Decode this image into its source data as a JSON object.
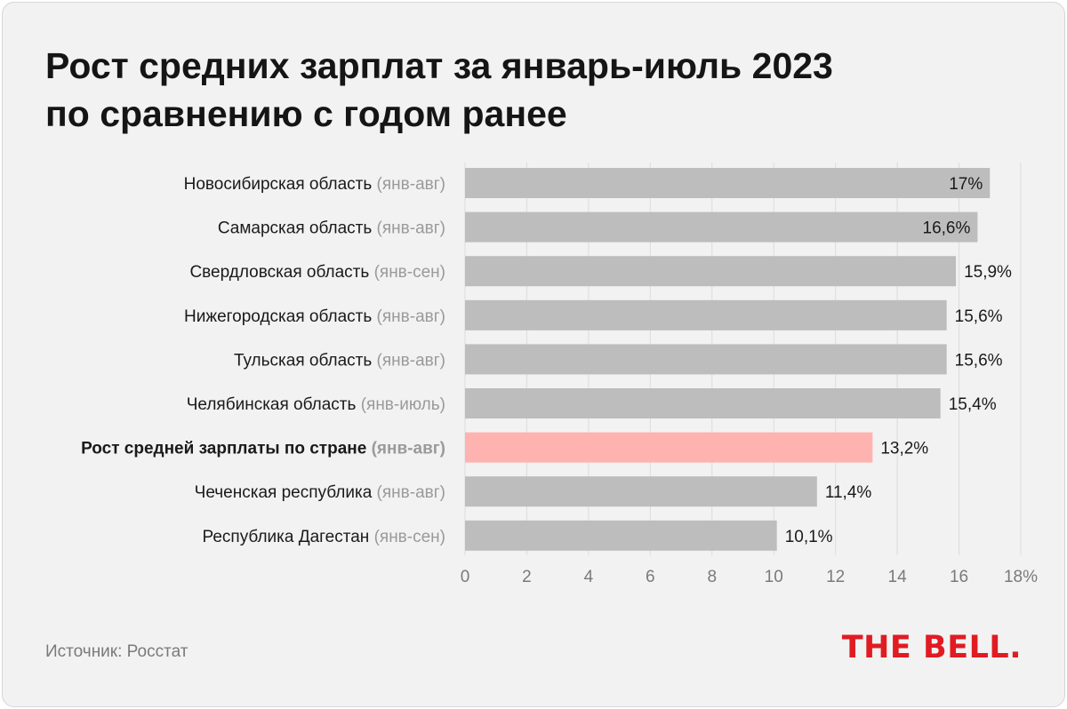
{
  "title": {
    "line1": "Рост средних зарплат за январь-июль 2023",
    "line2": "по сравнению с годом ранее"
  },
  "chart_data": {
    "type": "bar",
    "orientation": "horizontal",
    "title": "Рост средних зарплат за январь-июль 2023 по сравнению с годом ранее",
    "categories": [
      {
        "name": "Новосибирская область",
        "period": "(янв-авг)",
        "bold": false
      },
      {
        "name": "Самарская область",
        "period": "(янв-авг)",
        "bold": false
      },
      {
        "name": "Свердловская область",
        "period": "(янв-сен)",
        "bold": false
      },
      {
        "name": "Нижегородская область",
        "period": "(янв-авг)",
        "bold": false
      },
      {
        "name": "Тульская область",
        "period": "(янв-авг)",
        "bold": false
      },
      {
        "name": "Челябинская область",
        "period": "(янв-июль)",
        "bold": false
      },
      {
        "name": "Рост средней зарплаты по стране",
        "period": "(янв-авг)",
        "bold": true
      },
      {
        "name": "Чеченская республика",
        "period": "(янв-авг)",
        "bold": false
      },
      {
        "name": "Республика Дагестан",
        "period": "(янв-сен)",
        "bold": false
      }
    ],
    "values": [
      17,
      16.6,
      15.9,
      15.6,
      15.6,
      15.4,
      13.2,
      11.4,
      10.1
    ],
    "value_labels": [
      "17%",
      "16,6%",
      "15,9%",
      "15,6%",
      "15,6%",
      "15,4%",
      "13,2%",
      "11,4%",
      "10,1%"
    ],
    "xlim": [
      0,
      18
    ],
    "xticks": [
      0,
      2,
      4,
      6,
      8,
      10,
      12,
      14,
      16,
      18
    ],
    "xtick_labels": [
      "0",
      "2",
      "4",
      "6",
      "8",
      "10",
      "12",
      "14",
      "16",
      "18%"
    ],
    "grid": true,
    "colors": {
      "bar": "#bdbdbd",
      "highlight": "#ffb3b0",
      "grid": "#dcdcdc",
      "label": "#1a1a1a",
      "period": "#9a9a9a",
      "tick": "#7a7a7a"
    }
  },
  "footer": {
    "source": "Источник: Росстат",
    "logo": "THE BELL."
  }
}
